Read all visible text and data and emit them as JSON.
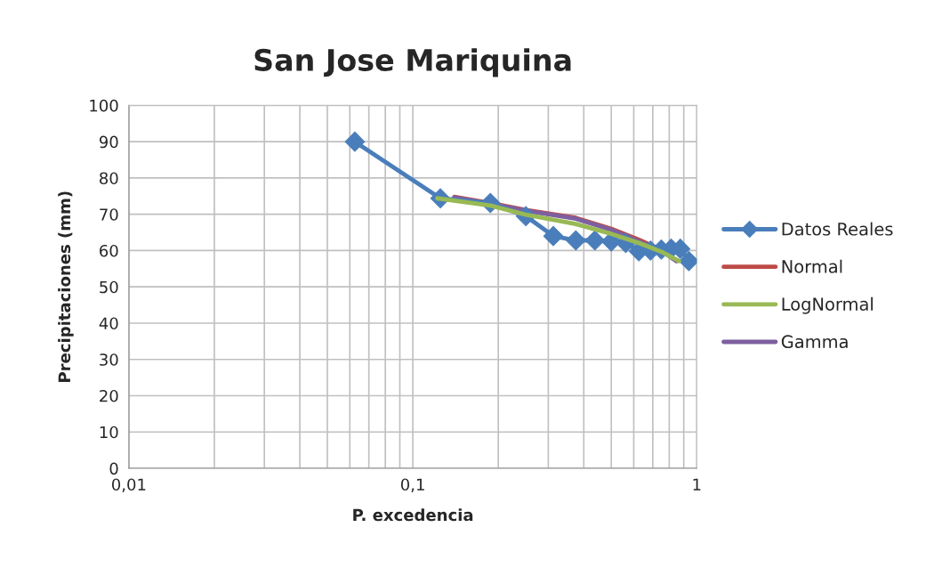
{
  "chart_data": {
    "type": "line",
    "title": "San Jose Mariquina",
    "xlabel": "P. excedencia",
    "ylabel": "Precipitaciones (mm)",
    "log": "x",
    "grid": true,
    "legend": "right",
    "marker": "none",
    "line_style": "solid",
    "xlim": [
      0.01,
      1
    ],
    "ylim": [
      0,
      100
    ],
    "xticks": [
      {
        "value": 0.01,
        "label": "0,01"
      },
      {
        "value": 0.02,
        "label": null
      },
      {
        "value": 0.03,
        "label": null
      },
      {
        "value": 0.04,
        "label": null
      },
      {
        "value": 0.05,
        "label": null
      },
      {
        "value": 0.06,
        "label": null
      },
      {
        "value": 0.07,
        "label": null
      },
      {
        "value": 0.08,
        "label": null
      },
      {
        "value": 0.09,
        "label": null
      },
      {
        "value": 0.1,
        "label": "0,1"
      },
      {
        "value": 0.2,
        "label": null
      },
      {
        "value": 0.3,
        "label": null
      },
      {
        "value": 0.4,
        "label": null
      },
      {
        "value": 0.5,
        "label": null
      },
      {
        "value": 0.6,
        "label": null
      },
      {
        "value": 0.7,
        "label": null
      },
      {
        "value": 0.8,
        "label": null
      },
      {
        "value": 0.9,
        "label": null
      },
      1
    ],
    "yticks": [
      0,
      10,
      20,
      30,
      40,
      50,
      60,
      70,
      80,
      90,
      100
    ],
    "series": [
      {
        "name": "Datos Reales",
        "color": "#4a7ebb",
        "marker": "diamond",
        "x": [
          0.0625,
          0.125,
          0.1875,
          0.25,
          0.3125,
          0.375,
          0.4375,
          0.5,
          0.5625,
          0.625,
          0.6875,
          0.75,
          0.8125,
          0.875,
          0.9375
        ],
        "values": [
          90,
          74.4,
          73.1,
          69.5,
          64,
          62.8,
          62.8,
          62.5,
          62.1,
          59.8,
          60,
          60.3,
          60.5,
          60.5,
          57.1
        ]
      },
      {
        "name": "Normal",
        "color": "#be4b48",
        "x": [
          0.14,
          0.1875,
          0.25,
          0.375,
          0.5,
          0.625,
          0.75,
          0.847
        ],
        "values": [
          74.8,
          73.1,
          71.2,
          69,
          66,
          63,
          60.2,
          57.2
        ]
      },
      {
        "name": "LogNormal",
        "color": "#98b954",
        "x": [
          0.122,
          0.1875,
          0.25,
          0.375,
          0.5,
          0.625,
          0.75,
          0.866
        ],
        "values": [
          74.4,
          72.4,
          69.9,
          67.3,
          64.6,
          62.1,
          59.7,
          57.1
        ]
      },
      {
        "name": "Gamma",
        "color": "#7d60a0",
        "x": [
          0.14,
          0.1875,
          0.25,
          0.375,
          0.5,
          0.625,
          0.75,
          0.847
        ],
        "values": [
          74.6,
          72.9,
          71,
          68.8,
          65.7,
          62.5,
          60,
          57.1
        ]
      }
    ]
  }
}
